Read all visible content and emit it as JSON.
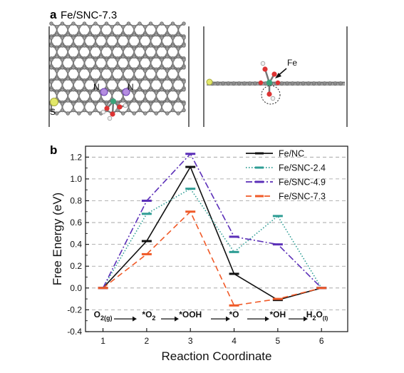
{
  "panel_a": {
    "letter": "a",
    "title": "Fe/SNC-7.3",
    "labels": {
      "n1": "N",
      "n2": "N",
      "s": "S",
      "fe": "Fe"
    }
  },
  "panel_b": {
    "letter": "b"
  },
  "chart_data": {
    "type": "line",
    "title": "",
    "xlabel": "Reaction Coordinate",
    "ylabel": "Free Energy (eV)",
    "x": [
      1,
      2,
      3,
      4,
      5,
      6
    ],
    "xlim": [
      0.6,
      6.6
    ],
    "ylim": [
      -0.4,
      1.3
    ],
    "xticks": [
      "1",
      "2",
      "3",
      "4",
      "5",
      "6"
    ],
    "yticks": [
      "-0.4",
      "-0.2",
      "0.0",
      "0.2",
      "0.4",
      "0.6",
      "0.8",
      "1.0",
      "1.2"
    ],
    "ytick_values": [
      -0.4,
      -0.2,
      0.0,
      0.2,
      0.4,
      0.6,
      0.8,
      1.0,
      1.2
    ],
    "grid": "horizontal dashed",
    "legend_position": "top-right",
    "step_labels": [
      {
        "base": "O",
        "sub": "2(g)",
        "x": 1.0
      },
      {
        "base": "*O",
        "sub": "2",
        "x": 2.05
      },
      {
        "base": "*OOH",
        "sub": "",
        "x": 3.0
      },
      {
        "base": "*O",
        "sub": "",
        "x": 4.0
      },
      {
        "base": "*OH",
        "sub": "",
        "x": 5.0
      },
      {
        "base": "H",
        "sub": "2",
        "base2": "O",
        "sub2": "(l)",
        "x": 5.9
      }
    ],
    "series": [
      {
        "name": "Fe/NC",
        "color": "#111111",
        "dash": "",
        "values": [
          0.0,
          0.43,
          1.11,
          0.13,
          -0.11,
          0.0
        ]
      },
      {
        "name": "Fe/SNC-2.4",
        "color": "#2e9d94",
        "dash": "1.5,2.5",
        "values": [
          0.0,
          0.68,
          0.91,
          0.33,
          0.66,
          0.0
        ]
      },
      {
        "name": "Fe/SNC-4.9",
        "color": "#5b2fb8",
        "dash": "9,3,2,3",
        "values": [
          0.0,
          0.8,
          1.23,
          0.47,
          0.4,
          0.0
        ]
      },
      {
        "name": "Fe/SNC-7.3",
        "color": "#f05a28",
        "dash": "8,5",
        "values": [
          0.0,
          0.31,
          0.7,
          -0.16,
          -0.1,
          0.0
        ]
      }
    ]
  }
}
